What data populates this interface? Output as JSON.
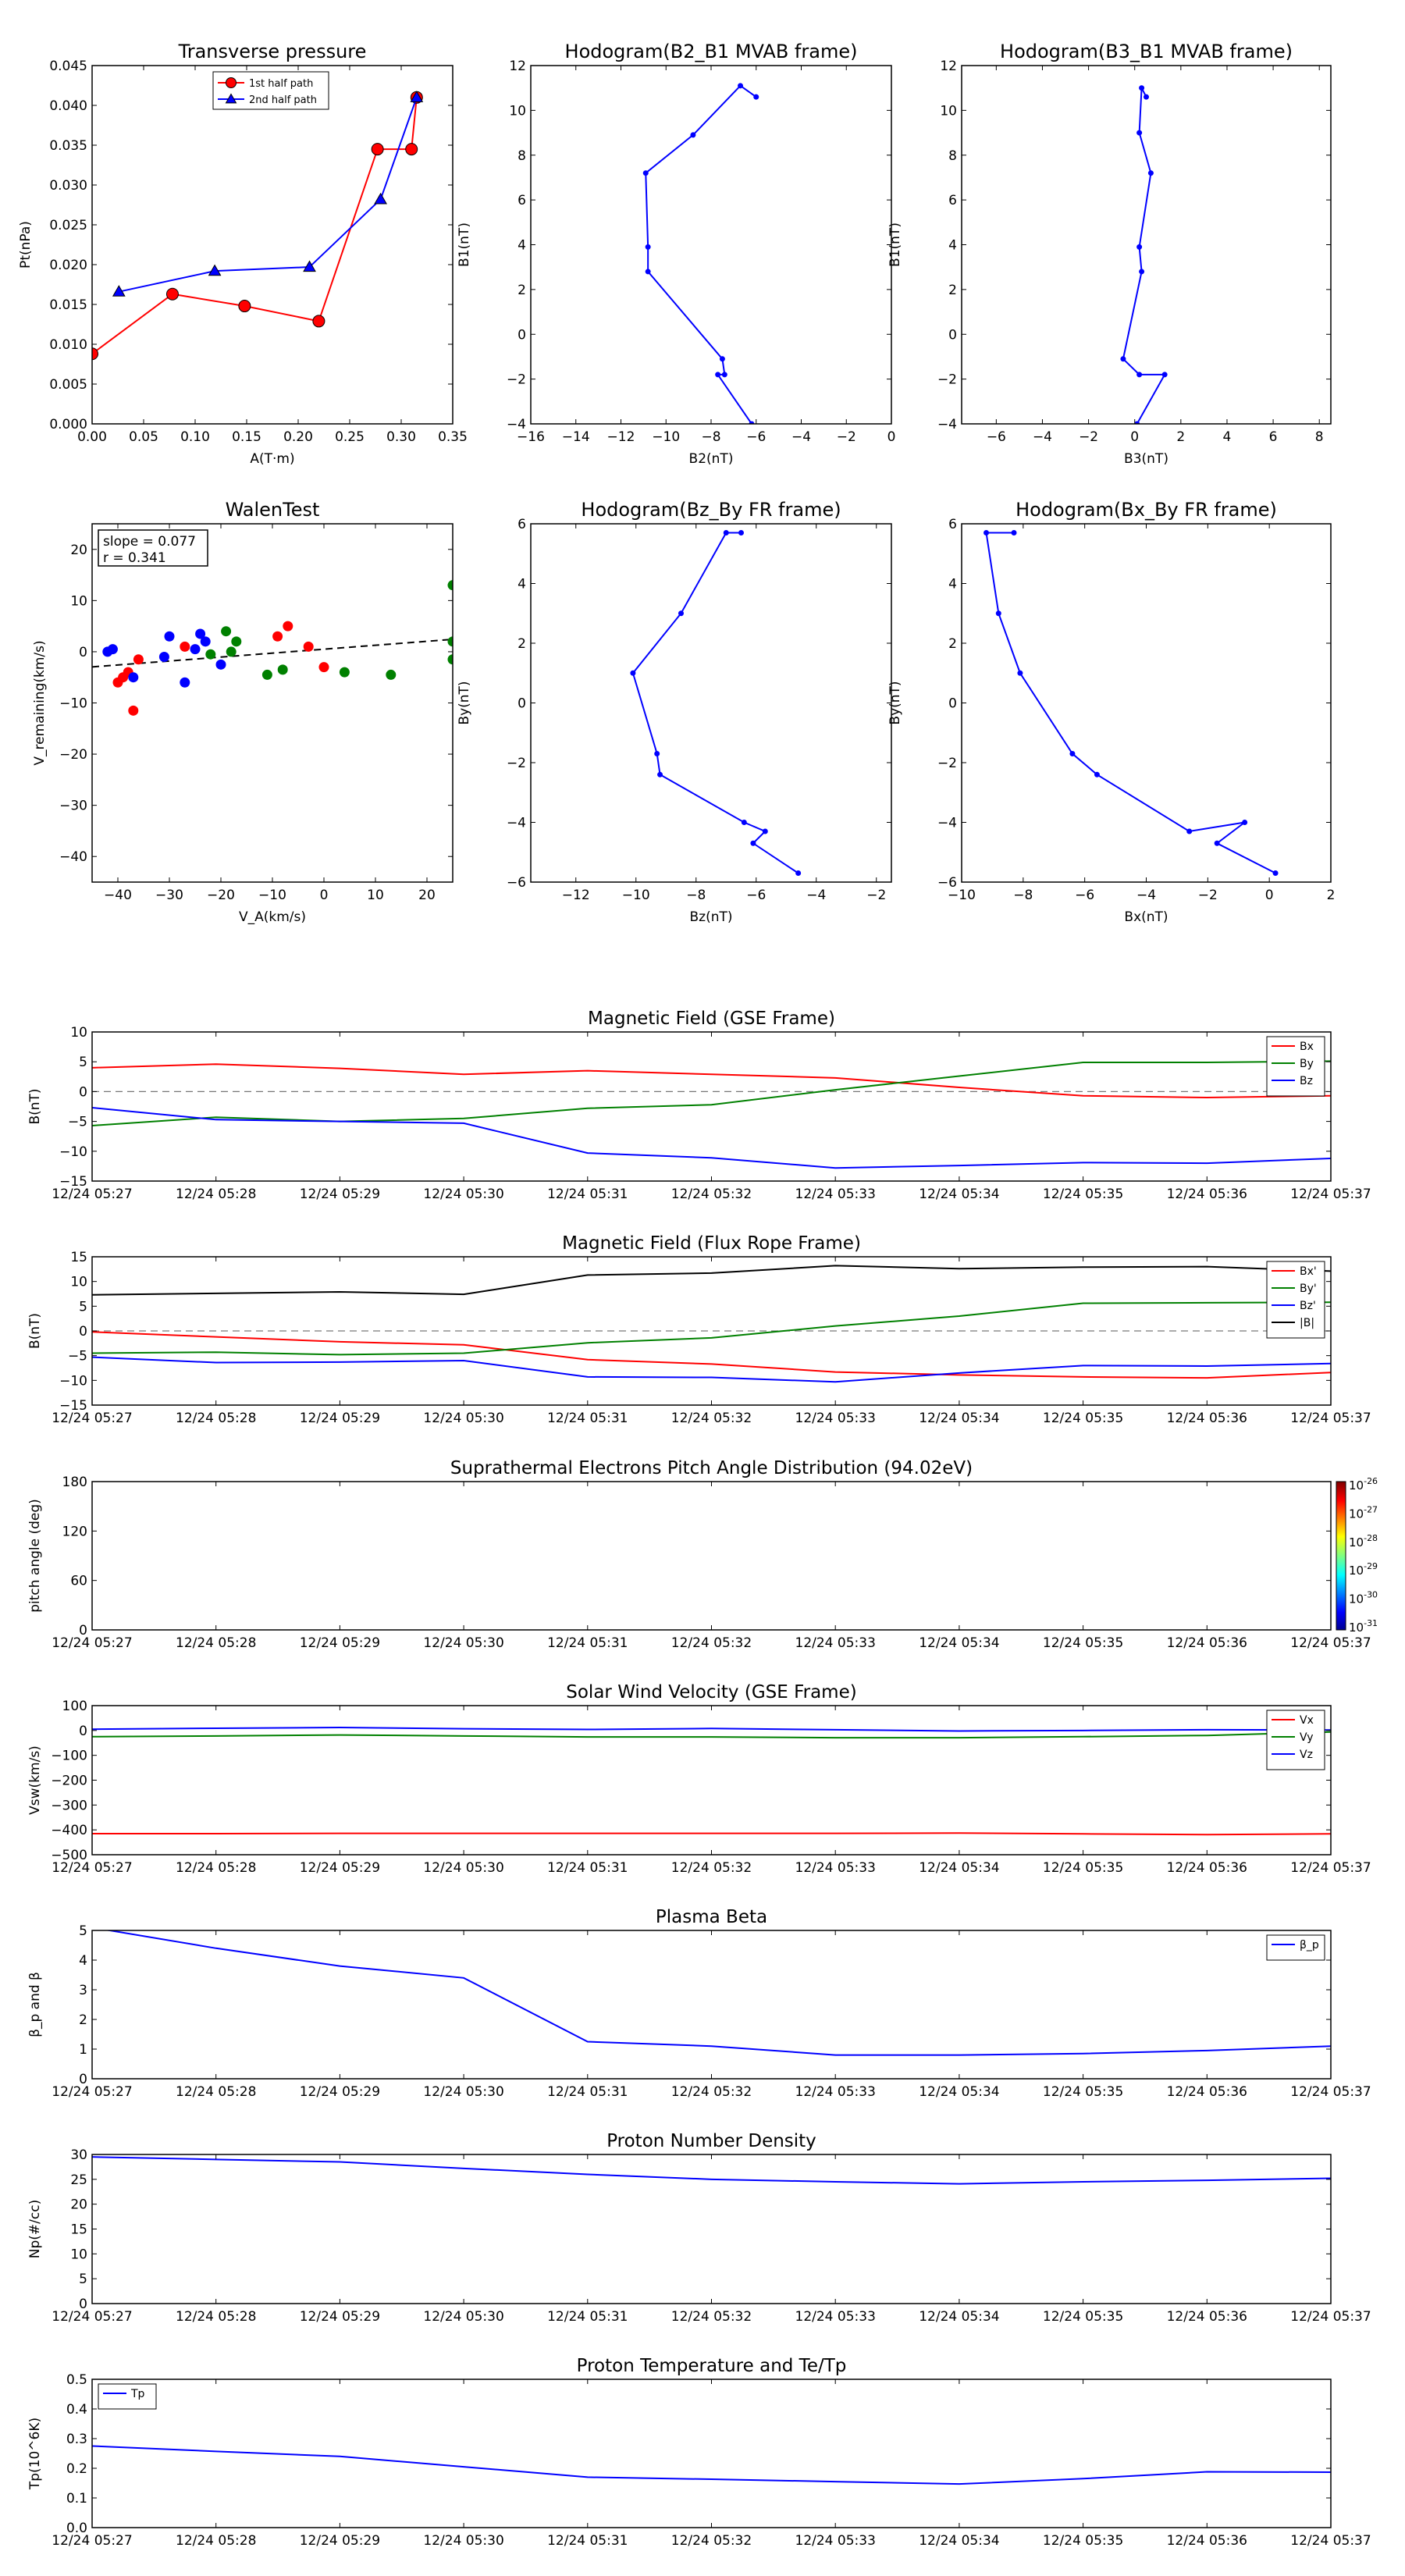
{
  "chart_data": [
    {
      "id": "tp",
      "type": "line",
      "title": "Transverse pressure",
      "xlabel": "A(T·m)",
      "ylabel": "Pt(nPa)",
      "xlim": [
        0,
        0.35
      ],
      "ylim": [
        0,
        0.045
      ],
      "xticks": [
        0,
        0.05,
        0.1,
        0.15,
        0.2,
        0.25,
        0.3,
        0.35
      ],
      "xtick_labels": [
        "0.00",
        "0.05",
        "0.10",
        "0.15",
        "0.20",
        "0.25",
        "0.30",
        "0.35"
      ],
      "yticks": [
        0,
        0.005,
        0.01,
        0.015,
        0.02,
        0.025,
        0.03,
        0.035,
        0.04,
        0.045
      ],
      "ytick_labels": [
        "0.000",
        "0.005",
        "0.010",
        "0.015",
        "0.020",
        "0.025",
        "0.030",
        "0.035",
        "0.040",
        "0.045"
      ],
      "legend": "upper center",
      "series": [
        {
          "name": "1st half path",
          "color": "#ff0000",
          "marker": "circle",
          "x": [
            0.0,
            0.078,
            0.148,
            0.22,
            0.277,
            0.31,
            0.315
          ],
          "y": [
            0.0088,
            0.0163,
            0.0148,
            0.0129,
            0.0345,
            0.0345,
            0.041
          ]
        },
        {
          "name": "2nd half path",
          "color": "#0000ff",
          "marker": "triangle",
          "x": [
            0.315,
            0.28,
            0.211,
            0.119,
            0.026
          ],
          "y": [
            0.041,
            0.0282,
            0.0197,
            0.0192,
            0.0166
          ]
        }
      ]
    },
    {
      "id": "h21",
      "type": "line",
      "title": "Hodogram(B2_B1 MVAB frame)",
      "xlabel": "B2(nT)",
      "ylabel": "B1(nT)",
      "xlim": [
        -16,
        0
      ],
      "ylim": [
        -4,
        12
      ],
      "xticks": [
        -16,
        -14,
        -12,
        -10,
        -8,
        -6,
        -4,
        -2,
        0
      ],
      "xtick_labels": [
        "−16",
        "−14",
        "−12",
        "−10",
        "−8",
        "−6",
        "−4",
        "−2",
        "0"
      ],
      "yticks": [
        -4,
        -2,
        0,
        2,
        4,
        6,
        8,
        10,
        12
      ],
      "ytick_labels": [
        "−4",
        "−2",
        "0",
        "2",
        "4",
        "6",
        "8",
        "10",
        "12"
      ],
      "series": [
        {
          "name": "hodogram",
          "color": "#0000ff",
          "marker": "dot",
          "x": [
            -6.0,
            -6.7,
            -8.8,
            -10.9,
            -10.8,
            -10.8,
            -7.5,
            -7.4,
            -7.7,
            -6.2
          ],
          "y": [
            10.6,
            11.1,
            8.9,
            7.2,
            3.9,
            2.8,
            -1.1,
            -1.8,
            -1.8,
            -4.0
          ]
        }
      ]
    },
    {
      "id": "h31",
      "type": "line",
      "title": "Hodogram(B3_B1 MVAB frame)",
      "xlabel": "B3(nT)",
      "ylabel": "B1(nT)",
      "xlim": [
        -7.5,
        8.5
      ],
      "ylim": [
        -4,
        12
      ],
      "xticks": [
        -6,
        -4,
        -2,
        0,
        2,
        4,
        6,
        8
      ],
      "xtick_labels": [
        "−6",
        "−4",
        "−2",
        "0",
        "2",
        "4",
        "6",
        "8"
      ],
      "yticks": [
        -4,
        -2,
        0,
        2,
        4,
        6,
        8,
        10,
        12
      ],
      "ytick_labels": [
        "−4",
        "−2",
        "0",
        "2",
        "4",
        "6",
        "8",
        "10",
        "12"
      ],
      "series": [
        {
          "name": "hodogram",
          "color": "#0000ff",
          "marker": "dot",
          "x": [
            0.5,
            0.3,
            0.2,
            0.7,
            0.2,
            0.3,
            -0.5,
            0.2,
            1.3,
            0.1
          ],
          "y": [
            10.6,
            11.0,
            9.0,
            7.2,
            3.9,
            2.8,
            -1.1,
            -1.8,
            -1.8,
            -4.0
          ]
        }
      ]
    },
    {
      "id": "walen",
      "type": "scatter",
      "title": "WalenTest",
      "xlabel": "V_A(km/s)",
      "ylabel": "V_remaining(km/s)",
      "xlim": [
        -45,
        25
      ],
      "ylim": [
        -45,
        25
      ],
      "xticks": [
        -40,
        -30,
        -20,
        -10,
        0,
        10,
        20
      ],
      "xtick_labels": [
        "−40",
        "−30",
        "−20",
        "−10",
        "0",
        "10",
        "20"
      ],
      "yticks": [
        -40,
        -30,
        -20,
        -10,
        0,
        10,
        20
      ],
      "ytick_labels": [
        "−40",
        "−30",
        "−20",
        "−10",
        "0",
        "10",
        "20"
      ],
      "annotation": [
        "slope = 0.077",
        "r = 0.341"
      ],
      "fit": {
        "slope": 0.077,
        "intercept": 0.5,
        "color": "#000000",
        "style": "dashed"
      },
      "series": [
        {
          "name": "red",
          "color": "#ff0000",
          "x": [
            -37,
            -40,
            -38,
            -39,
            -36,
            -27,
            -7,
            -9,
            -3,
            0
          ],
          "y": [
            -11.5,
            -6,
            -4,
            -5,
            -1.5,
            1,
            5,
            3,
            1,
            -3
          ]
        },
        {
          "name": "blue",
          "color": "#0000ff",
          "x": [
            -42,
            -41,
            -37,
            -31,
            -30,
            -27,
            -25,
            -24,
            -23,
            -20
          ],
          "y": [
            0,
            0.5,
            -5,
            -1,
            3,
            -6,
            0.5,
            3.5,
            2,
            -2.5
          ]
        },
        {
          "name": "green",
          "color": "#008000",
          "x": [
            -22,
            -19,
            -18,
            -17,
            -11,
            -8,
            4,
            13,
            25,
            25,
            25
          ],
          "y": [
            -0.5,
            4,
            0,
            2,
            -4.5,
            -3.5,
            -4,
            -4.5,
            13,
            2,
            -1.5
          ]
        }
      ]
    },
    {
      "id": "hzy",
      "type": "line",
      "title": "Hodogram(Bz_By FR frame)",
      "xlabel": "Bz(nT)",
      "ylabel": "By(nT)",
      "xlim": [
        -13.5,
        -1.5
      ],
      "ylim": [
        -6,
        6
      ],
      "xticks": [
        -12,
        -10,
        -8,
        -6,
        -4,
        -2
      ],
      "xtick_labels": [
        "−12",
        "−10",
        "−8",
        "−6",
        "−4",
        "−2"
      ],
      "yticks": [
        -6,
        -4,
        -2,
        0,
        2,
        4,
        6
      ],
      "ytick_labels": [
        "−6",
        "−4",
        "−2",
        "0",
        "2",
        "4",
        "6"
      ],
      "series": [
        {
          "name": "hodogram",
          "color": "#0000ff",
          "marker": "dot",
          "x": [
            -6.5,
            -7.0,
            -8.5,
            -10.1,
            -9.3,
            -9.2,
            -6.4,
            -5.7,
            -6.1,
            -4.6
          ],
          "y": [
            5.7,
            5.7,
            3.0,
            1.0,
            -1.7,
            -2.4,
            -4.0,
            -4.3,
            -4.7,
            -5.7
          ]
        }
      ]
    },
    {
      "id": "hxy",
      "type": "line",
      "title": "Hodogram(Bx_By FR frame)",
      "xlabel": "Bx(nT)",
      "ylabel": "By(nT)",
      "xlim": [
        -10,
        2
      ],
      "ylim": [
        -6,
        6
      ],
      "xticks": [
        -10,
        -8,
        -6,
        -4,
        -2,
        0,
        2
      ],
      "xtick_labels": [
        "−10",
        "−8",
        "−6",
        "−4",
        "−2",
        "0",
        "2"
      ],
      "yticks": [
        -6,
        -4,
        -2,
        0,
        2,
        4,
        6
      ],
      "ytick_labels": [
        "−6",
        "−4",
        "−2",
        "0",
        "2",
        "4",
        "6"
      ],
      "series": [
        {
          "name": "hodogram",
          "color": "#0000ff",
          "marker": "dot",
          "x": [
            -8.3,
            -9.2,
            -8.8,
            -8.1,
            -6.4,
            -5.6,
            -2.6,
            -0.8,
            -1.7,
            0.2
          ],
          "y": [
            5.7,
            5.7,
            3.0,
            1.0,
            -1.7,
            -2.4,
            -4.3,
            -4.0,
            -4.7,
            -5.7
          ]
        }
      ]
    },
    {
      "id": "bgse",
      "type": "line",
      "title": "Magnetic Field (GSE Frame)",
      "ylabel": "B(nT)",
      "xlim": [
        0,
        10
      ],
      "ylim": [
        -15,
        10
      ],
      "yticks": [
        -15,
        -10,
        -5,
        0,
        5,
        10
      ],
      "ytick_labels": [
        "−15",
        "−10",
        "−5",
        "0",
        "5",
        "10"
      ],
      "zero_line": true,
      "legend": "upper right",
      "x": [
        0,
        1,
        2,
        3,
        4,
        5,
        6,
        7,
        8,
        9,
        10
      ],
      "series": [
        {
          "name": "Bx",
          "color": "#ff0000",
          "values": [
            4.0,
            4.6,
            3.9,
            2.9,
            3.5,
            2.9,
            2.3,
            0.7,
            -0.7,
            -1.0,
            -0.7
          ]
        },
        {
          "name": "By",
          "color": "#008000",
          "values": [
            -5.7,
            -4.3,
            -5.0,
            -4.5,
            -2.8,
            -2.2,
            0.3,
            2.6,
            4.9,
            4.9,
            5.1
          ]
        },
        {
          "name": "Bz",
          "color": "#0000ff",
          "values": [
            -2.7,
            -4.7,
            -5.0,
            -5.3,
            -10.3,
            -11.1,
            -12.8,
            -12.4,
            -11.9,
            -12.0,
            -11.2
          ]
        }
      ]
    },
    {
      "id": "bfr",
      "type": "line",
      "title": "Magnetic Field (Flux Rope Frame)",
      "ylabel": "B(nT)",
      "xlim": [
        0,
        10
      ],
      "ylim": [
        -15,
        15
      ],
      "yticks": [
        -15,
        -10,
        -5,
        0,
        5,
        10,
        15
      ],
      "ytick_labels": [
        "−15",
        "−10",
        "−5",
        "0",
        "5",
        "10",
        "15"
      ],
      "zero_line": true,
      "legend": "upper right",
      "x": [
        0,
        1,
        2,
        3,
        4,
        5,
        6,
        7,
        8,
        9,
        10
      ],
      "series": [
        {
          "name": "Bx'",
          "color": "#ff0000",
          "values": [
            -0.2,
            -1.2,
            -2.2,
            -2.8,
            -5.8,
            -6.7,
            -8.3,
            -8.9,
            -9.3,
            -9.5,
            -8.4
          ]
        },
        {
          "name": "By'",
          "color": "#008000",
          "values": [
            -4.5,
            -4.3,
            -4.8,
            -4.5,
            -2.4,
            -1.4,
            1.0,
            3.0,
            5.6,
            5.7,
            5.8
          ]
        },
        {
          "name": "Bz'",
          "color": "#0000ff",
          "values": [
            -5.3,
            -6.4,
            -6.3,
            -6.0,
            -9.3,
            -9.4,
            -10.3,
            -8.5,
            -7.0,
            -7.1,
            -6.6
          ]
        },
        {
          "name": "|B|",
          "color": "#000000",
          "values": [
            7.3,
            7.6,
            7.9,
            7.4,
            11.3,
            11.7,
            13.2,
            12.6,
            12.9,
            13.0,
            12.1
          ]
        }
      ]
    },
    {
      "id": "pad",
      "type": "heatmap",
      "title": "Suprathermal Electrons Pitch Angle Distribution (94.02eV)",
      "ylabel": "pitch angle (deg)",
      "xlim": [
        0,
        10
      ],
      "ylim": [
        0,
        180
      ],
      "yticks": [
        0,
        60,
        120,
        180
      ],
      "ytick_labels": [
        "0",
        "60",
        "120",
        "180"
      ],
      "colorbar": {
        "labels": [
          "10^-26",
          "10^-27",
          "10^-28",
          "10^-29",
          "10^-30",
          "10^-31"
        ]
      },
      "values": []
    },
    {
      "id": "vsw",
      "type": "line",
      "title": "Solar Wind Velocity (GSE Frame)",
      "ylabel": "Vsw(km/s)",
      "xlim": [
        0,
        10
      ],
      "ylim": [
        -500,
        100
      ],
      "yticks": [
        -500,
        -400,
        -300,
        -200,
        -100,
        0,
        100
      ],
      "ytick_labels": [
        "−500",
        "−400",
        "−300",
        "−200",
        "−100",
        "0",
        "100"
      ],
      "legend": "upper right",
      "x": [
        0,
        1,
        2,
        3,
        4,
        5,
        6,
        7,
        8,
        9,
        10
      ],
      "series": [
        {
          "name": "Vx",
          "color": "#ff0000",
          "values": [
            -415,
            -415,
            -414,
            -414,
            -414,
            -414,
            -414,
            -413,
            -416,
            -419,
            -416
          ]
        },
        {
          "name": "Vy",
          "color": "#008000",
          "values": [
            -25,
            -22,
            -18,
            -22,
            -26,
            -26,
            -29,
            -29,
            -25,
            -20,
            -6
          ]
        },
        {
          "name": "Vz",
          "color": "#0000ff",
          "values": [
            5,
            9,
            12,
            7,
            4,
            8,
            3,
            -2,
            0,
            3,
            2
          ]
        }
      ]
    },
    {
      "id": "beta",
      "type": "line",
      "title": "Plasma Beta",
      "ylabel": "β_p and β",
      "xlim": [
        0,
        10
      ],
      "ylim": [
        0,
        5
      ],
      "yticks": [
        0,
        1,
        2,
        3,
        4,
        5
      ],
      "ytick_labels": [
        "0",
        "1",
        "2",
        "3",
        "4",
        "5"
      ],
      "legend": "upper right",
      "x": [
        0,
        1,
        2,
        3,
        4,
        5,
        6,
        7,
        8,
        9,
        10
      ],
      "series": [
        {
          "name": "β_p",
          "color": "#0000ff",
          "values": [
            5.1,
            4.4,
            3.8,
            3.4,
            1.25,
            1.1,
            0.8,
            0.8,
            0.85,
            0.95,
            1.1
          ]
        }
      ]
    },
    {
      "id": "np",
      "type": "line",
      "title": "Proton Number Density",
      "ylabel": "Np(#/cc)",
      "xlim": [
        0,
        10
      ],
      "ylim": [
        0,
        30
      ],
      "yticks": [
        0,
        5,
        10,
        15,
        20,
        25,
        30
      ],
      "ytick_labels": [
        "0",
        "5",
        "10",
        "15",
        "20",
        "25",
        "30"
      ],
      "x": [
        0,
        1,
        2,
        3,
        4,
        5,
        6,
        7,
        8,
        9,
        10
      ],
      "series": [
        {
          "name": "Np",
          "color": "#0000ff",
          "values": [
            29.5,
            29.0,
            28.5,
            27.2,
            26.0,
            25.0,
            24.5,
            24.1,
            24.5,
            24.8,
            25.2
          ]
        }
      ]
    },
    {
      "id": "tpt",
      "type": "line",
      "title": "Proton Temperature and Te/Tp",
      "ylabel": "Tp(10^6K)",
      "xlim": [
        0,
        10
      ],
      "ylim": [
        0,
        0.5
      ],
      "yticks": [
        0,
        0.1,
        0.2,
        0.3,
        0.4,
        0.5
      ],
      "ytick_labels": [
        "0.0",
        "0.1",
        "0.2",
        "0.3",
        "0.4",
        "0.5"
      ],
      "legend": "upper left",
      "x": [
        0,
        1,
        2,
        3,
        4,
        5,
        6,
        7,
        8,
        9,
        10
      ],
      "series": [
        {
          "name": "Tp",
          "color": "#0000ff",
          "values": [
            0.275,
            0.257,
            0.24,
            0.205,
            0.17,
            0.163,
            0.155,
            0.147,
            0.165,
            0.188,
            0.187
          ]
        }
      ]
    }
  ],
  "time_tick_labels": [
    "12/24 05:27",
    "12/24 05:28",
    "12/24 05:29",
    "12/24 05:30",
    "12/24 05:31",
    "12/24 05:32",
    "12/24 05:33",
    "12/24 05:34",
    "12/24 05:35",
    "12/24 05:36",
    "12/24 05:37"
  ]
}
